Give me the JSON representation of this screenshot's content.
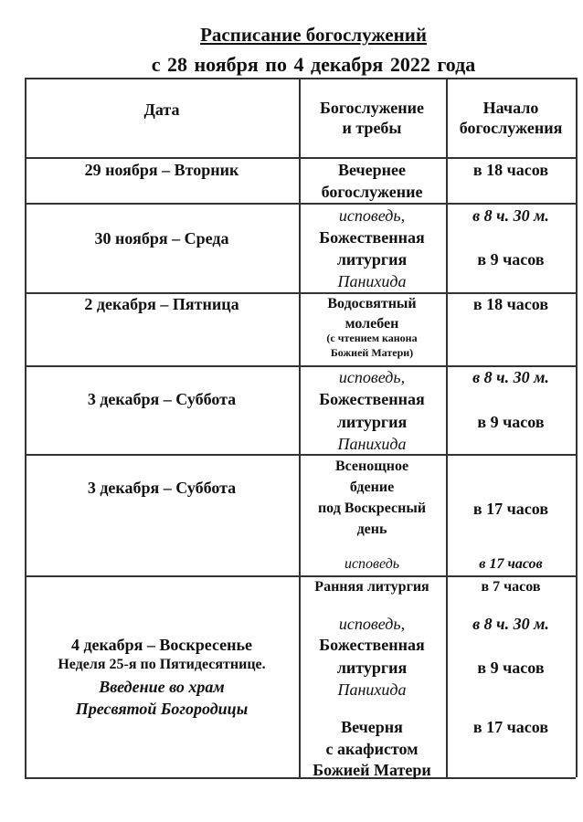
{
  "title": "Расписание богослужений",
  "subtitle": "с  28 ноября по 4 декабря  2022  года",
  "headers": {
    "date": "Дата",
    "service": [
      "Богослужение",
      "и требы"
    ],
    "start": [
      "Начало",
      "богослужения"
    ]
  },
  "rows": [
    {
      "date": [
        "29 ноября – Вторник"
      ],
      "service": [
        "Вечернее",
        "богослужение"
      ],
      "time": [
        "в 18 часов"
      ]
    },
    {
      "date": [
        "30 ноября – Среда"
      ],
      "service": [
        "исповедь,",
        "Божественная",
        "литургия",
        "Панихида"
      ],
      "time": [
        "в  8 ч. 30 м.",
        "в 9 часов"
      ]
    },
    {
      "date": [
        "2 декабря – Пятница"
      ],
      "service": [
        "Водосвятный",
        "молебен",
        "(с чтением канона",
        "Божией Матери)"
      ],
      "time": [
        "в 18 часов"
      ]
    },
    {
      "date": [
        "3 декабря – Суббота"
      ],
      "service": [
        "исповедь,",
        "Божественная",
        "литургия",
        "Панихида"
      ],
      "time": [
        "в  8 ч. 30 м.",
        "в 9 часов"
      ]
    },
    {
      "date": [
        "3 декабря – Суббота"
      ],
      "service": [
        "Всенощное",
        "бдение",
        "под Воскресный",
        "день",
        "исповедь"
      ],
      "time": [
        "в 17 часов",
        "в 17 часов"
      ]
    },
    {
      "date": [
        "4 декабря – Воскресенье",
        "Неделя 25-я по Пятидесятнице.",
        "Введение во храм",
        "Пресвятой Богородицы"
      ],
      "service": [
        "Ранняя литургия",
        "исповедь,",
        "Божественная",
        "литургия",
        "Панихида",
        "Вечерня",
        "с акафистом",
        "Божией Матери"
      ],
      "time": [
        "в 7 часов",
        "в  8 ч. 30 м.",
        "в 9 часов",
        "в 17 часов"
      ]
    }
  ]
}
